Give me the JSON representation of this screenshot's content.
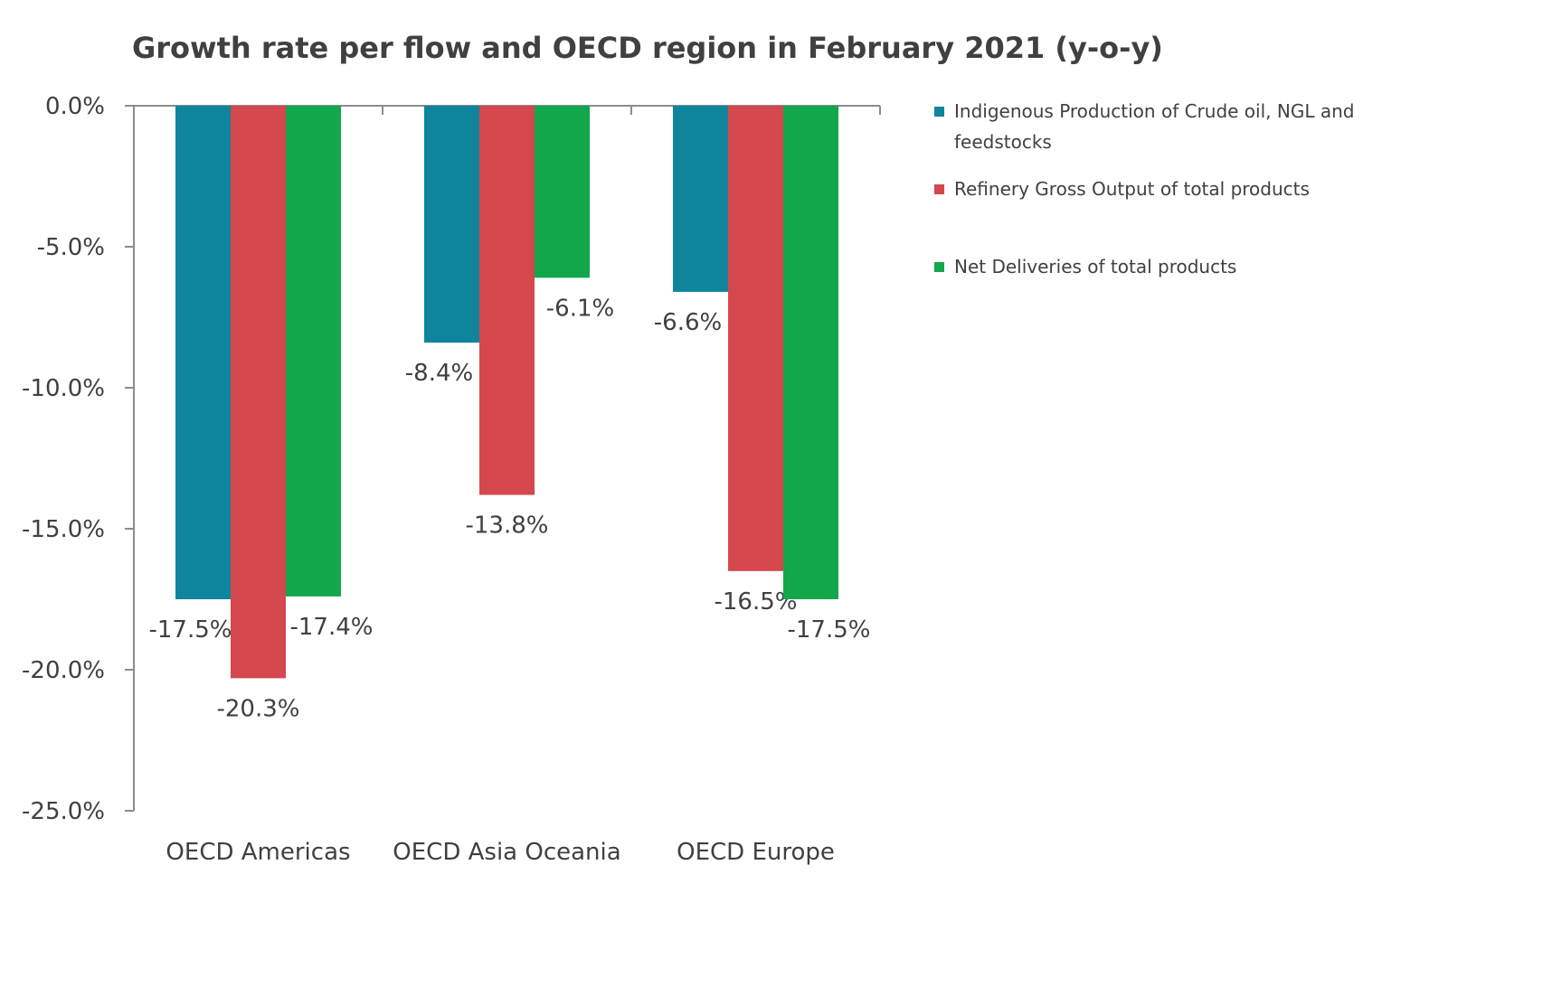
{
  "chart_data": {
    "type": "bar",
    "title": "Growth rate per flow and OECD region in February 2021 (y-o-y)",
    "xlabel": "",
    "ylabel": "",
    "categories": [
      "OECD Americas",
      "OECD Asia Oceania",
      "OECD Europe"
    ],
    "ylim": [
      -25.0,
      0.0
    ],
    "yticks": [
      0.0,
      -5.0,
      -10.0,
      -15.0,
      -20.0,
      -25.0
    ],
    "ytick_labels": [
      "0.0%",
      "-5.0%",
      "-10.0%",
      "-15.0%",
      "-20.0%",
      "-25.0%"
    ],
    "grid": false,
    "legend_position": "right",
    "series": [
      {
        "name": "Indigenous Production of Crude oil, NGL and feedstocks",
        "legend_lines": [
          "Indigenous Production of Crude oil, NGL and",
          "feedstocks"
        ],
        "color": "#0e849d",
        "values": [
          -17.5,
          -8.4,
          -6.6
        ],
        "labels": [
          "-17.5%",
          "-8.4%",
          "-6.6%"
        ]
      },
      {
        "name": "Refinery Gross Output of total products",
        "legend_lines": [
          "Refinery Gross Output of total products"
        ],
        "color": "#d4474c",
        "values": [
          -20.3,
          -13.8,
          -16.5
        ],
        "labels": [
          "-20.3%",
          "-13.8%",
          "-16.5%"
        ]
      },
      {
        "name": "Net Deliveries of total products",
        "legend_lines": [
          "Net Deliveries of total products"
        ],
        "color": "#12a74b",
        "values": [
          -17.4,
          -6.1,
          -17.5
        ],
        "labels": [
          "-17.4%",
          "-6.1%",
          "-17.5%"
        ]
      }
    ]
  }
}
